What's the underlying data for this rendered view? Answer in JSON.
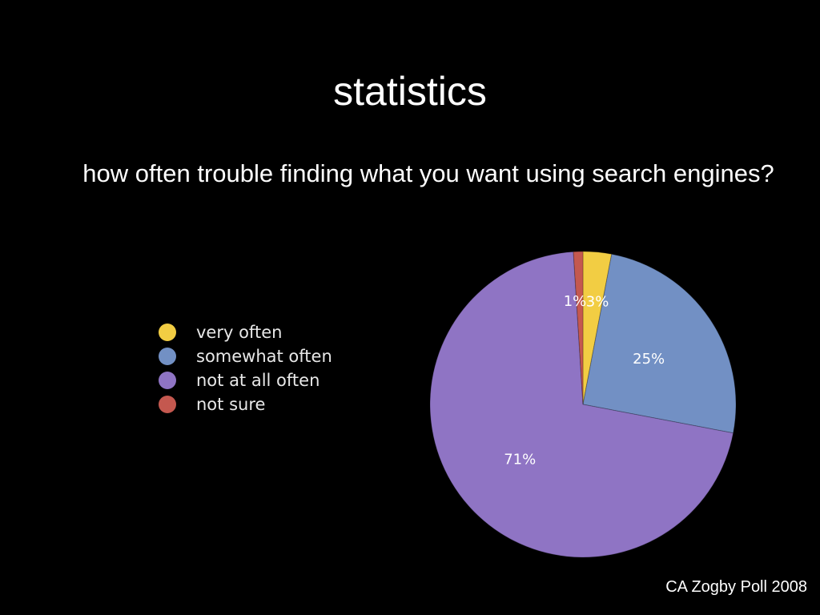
{
  "title": "statistics",
  "subtitle": "how often trouble finding what you want using search engines?",
  "source": "CA Zogby Poll 2008",
  "chart_data": {
    "type": "pie",
    "title": "",
    "legend_position": "left",
    "slices": [
      {
        "name": "very often",
        "value": 3,
        "label": "3%",
        "color": "#f2cd43"
      },
      {
        "name": "somewhat often",
        "value": 25,
        "label": "25%",
        "color": "#7290c4"
      },
      {
        "name": "not at all often",
        "value": 71,
        "label": "71%",
        "color": "#8f74c4"
      },
      {
        "name": "not sure",
        "value": 1,
        "label": "1%",
        "color": "#c4584f"
      }
    ]
  }
}
